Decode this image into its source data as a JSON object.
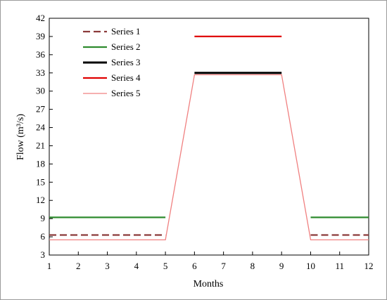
{
  "chart_data": {
    "type": "line",
    "title": "",
    "xlabel": "Months",
    "ylabel": "Flow (m³/s)",
    "xlim": [
      1,
      12
    ],
    "ylim": [
      3,
      42
    ],
    "xticks": [
      1,
      2,
      3,
      4,
      5,
      6,
      7,
      8,
      9,
      10,
      11,
      12
    ],
    "yticks": [
      3,
      6,
      9,
      12,
      15,
      18,
      21,
      24,
      27,
      30,
      33,
      36,
      39,
      42
    ],
    "grid": false,
    "legend_position": "top-left",
    "series": [
      {
        "name": "Series 1",
        "color": "#8b3a3a",
        "dash": "dashed",
        "segments": [
          {
            "x": [
              1,
              5
            ],
            "y": [
              6.3,
              6.3
            ]
          },
          {
            "x": [
              10,
              12
            ],
            "y": [
              6.3,
              6.3
            ]
          }
        ]
      },
      {
        "name": "Series 2",
        "color": "#2e8b2e",
        "dash": "solid",
        "segments": [
          {
            "x": [
              1,
              5
            ],
            "y": [
              9.2,
              9.2
            ]
          },
          {
            "x": [
              10,
              12
            ],
            "y": [
              9.2,
              9.2
            ]
          }
        ]
      },
      {
        "name": "Series 3",
        "color": "#000000",
        "dash": "solid",
        "segments": [
          {
            "x": [
              6,
              9
            ],
            "y": [
              33,
              33
            ]
          }
        ]
      },
      {
        "name": "Series 4",
        "color": "#e00000",
        "dash": "solid",
        "segments": [
          {
            "x": [
              6,
              9
            ],
            "y": [
              39,
              39
            ]
          }
        ]
      },
      {
        "name": "Series 5",
        "color": "#f08080",
        "dash": "solid",
        "segments": [
          {
            "x": [
              1,
              5,
              6,
              9,
              10,
              12
            ],
            "y": [
              5.5,
              5.5,
              32.7,
              32.7,
              5.5,
              5.5
            ]
          }
        ]
      }
    ]
  }
}
